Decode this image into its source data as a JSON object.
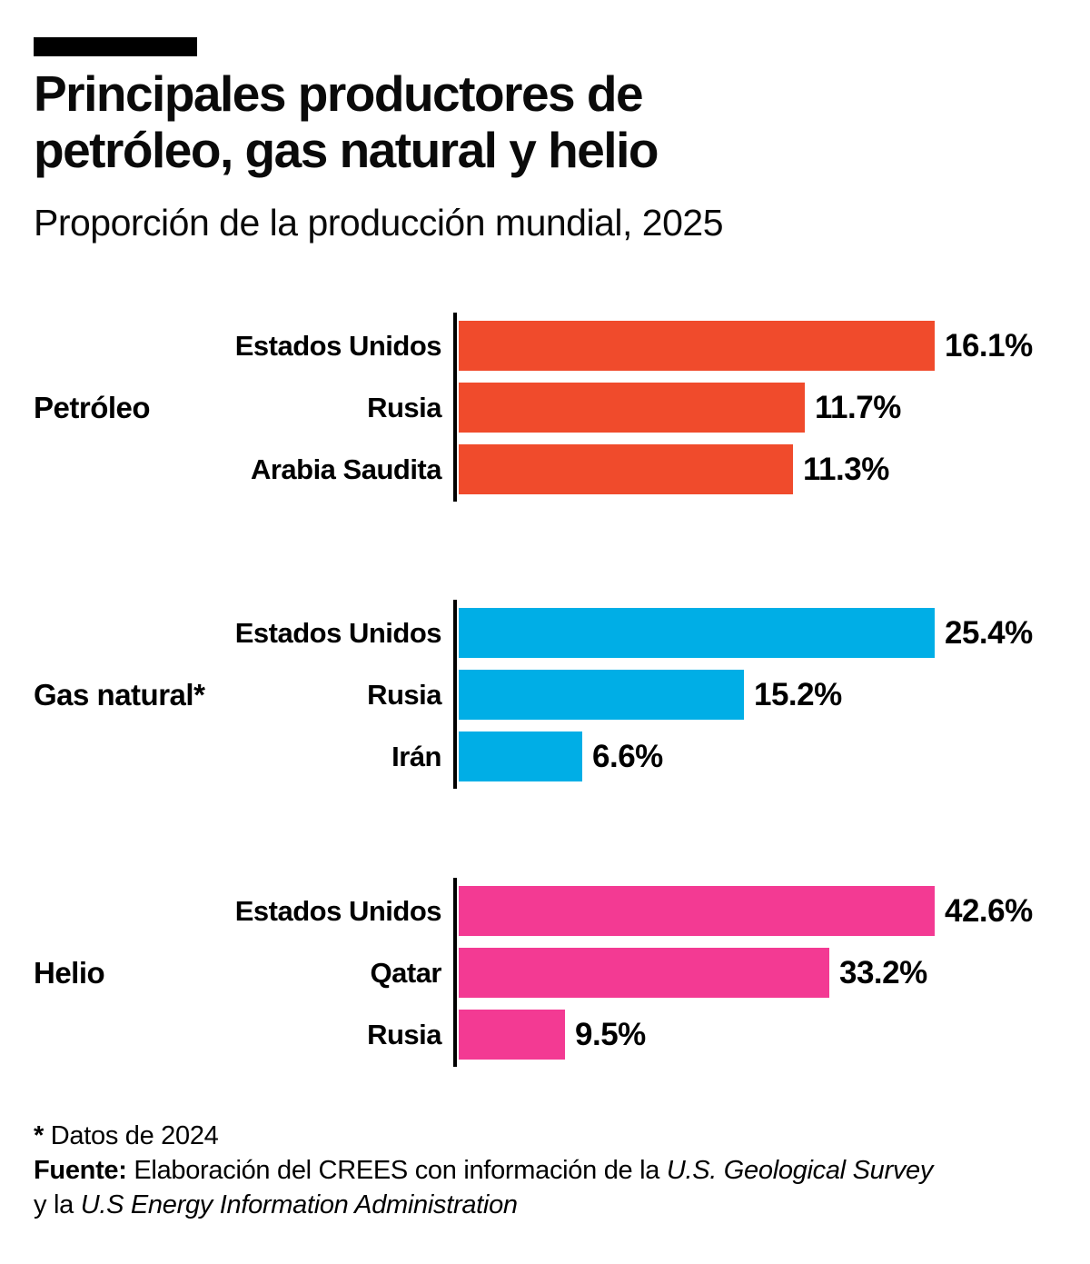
{
  "header": {
    "kicker_bar_color": "#000000",
    "title_line1": "Principales productores de",
    "title_line2": "petróleo, gas natural y helio",
    "subtitle": "Proporción de la producción mundial, 2025"
  },
  "chart_data": [
    {
      "type": "bar",
      "orientation": "horizontal",
      "title": "Petróleo",
      "categories": [
        "Estados Unidos",
        "Rusia",
        "Arabia Saudita"
      ],
      "values": [
        16.1,
        11.7,
        11.3
      ],
      "value_labels": [
        "16.1%",
        "11.7%",
        "11.3%"
      ],
      "bar_color": "#F04B2C",
      "xlim": [
        0,
        16.1
      ],
      "legend": "none",
      "grid": "off"
    },
    {
      "type": "bar",
      "orientation": "horizontal",
      "title": "Gas natural*",
      "categories": [
        "Estados Unidos",
        "Rusia",
        "Irán"
      ],
      "values": [
        25.4,
        15.2,
        6.6
      ],
      "value_labels": [
        "25.4%",
        "15.2%",
        "6.6%"
      ],
      "bar_color": "#00AEE6",
      "xlim": [
        0,
        25.4
      ],
      "legend": "none",
      "grid": "off"
    },
    {
      "type": "bar",
      "orientation": "horizontal",
      "title": "Helio",
      "categories": [
        "Estados Unidos",
        "Qatar",
        "Rusia"
      ],
      "values": [
        42.6,
        33.2,
        9.5
      ],
      "value_labels": [
        "42.6%",
        "33.2%",
        "9.5%"
      ],
      "bar_color": "#F33A93",
      "xlim": [
        0,
        42.6
      ],
      "legend": "none",
      "grid": "off"
    }
  ],
  "footer": {
    "footnote_marker": "*",
    "footnote_text": " Datos de 2024",
    "source_label": "Fuente:",
    "source_text": " Elaboración del CREES con información de la ",
    "source_italic_1": "U.S. Geological Survey",
    "source_connector": "y la ",
    "source_italic_2": "U.S Energy Information Administration"
  }
}
